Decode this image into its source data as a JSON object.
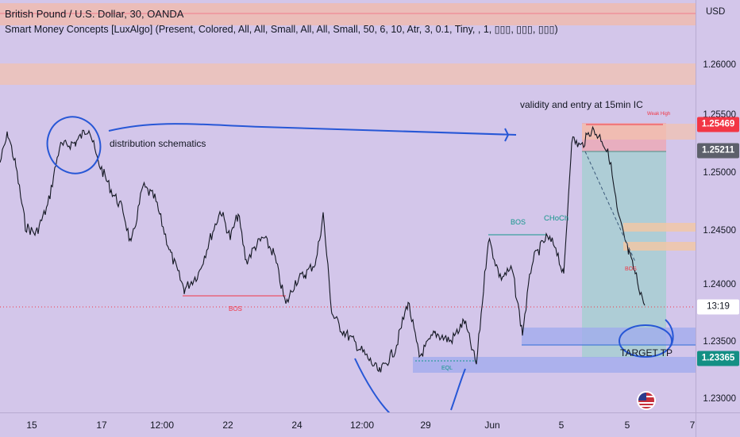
{
  "legend": {
    "title": "British Pound / U.S. Dollar, 30, OANDA",
    "indicator": "Smart Money Concepts [LuxAlgo] (Present, Colored, All, All, Small, All, All, Small, 50, 6, 10, Atr, 3, 0.1, Tiny, , 1, ▯▯▯, ▯▯▯, ▯▯▯)"
  },
  "price_axis": {
    "currency": "USD",
    "ticks": [
      "1.26000",
      "1.25500",
      "1.25000",
      "1.24500",
      "1.24000",
      "1.23500",
      "1.23000"
    ],
    "tags": {
      "high": "1.25469",
      "mid": "1.25211",
      "countdown": "13:19",
      "target": "1.23365"
    }
  },
  "time_axis": {
    "ticks": [
      "15",
      "17",
      "12:00",
      "22",
      "24",
      "12:00",
      "29",
      "Jun",
      "5",
      "5",
      "7"
    ]
  },
  "annotations": {
    "distribution": "distribution schematics",
    "validity": "validity and entry at 15min IC",
    "target": "TARGET TP",
    "bos_left": "BOS",
    "bos_right": "BOS",
    "choch": "CHoCh",
    "eql": "EQL",
    "weak_high": "Weak High",
    "bos_small": "BOS"
  },
  "colors": {
    "background": "#d3c6ea",
    "candle": "#131722",
    "supply_zone": "#f3b9a8",
    "demand_zone": "#9fa9ee",
    "long_profit": "#8fd3c4",
    "long_loss": "#eda7b4",
    "drawing": "#2757d6",
    "tag_red": "#f23645",
    "tag_gray": "#5d606b"
  }
}
